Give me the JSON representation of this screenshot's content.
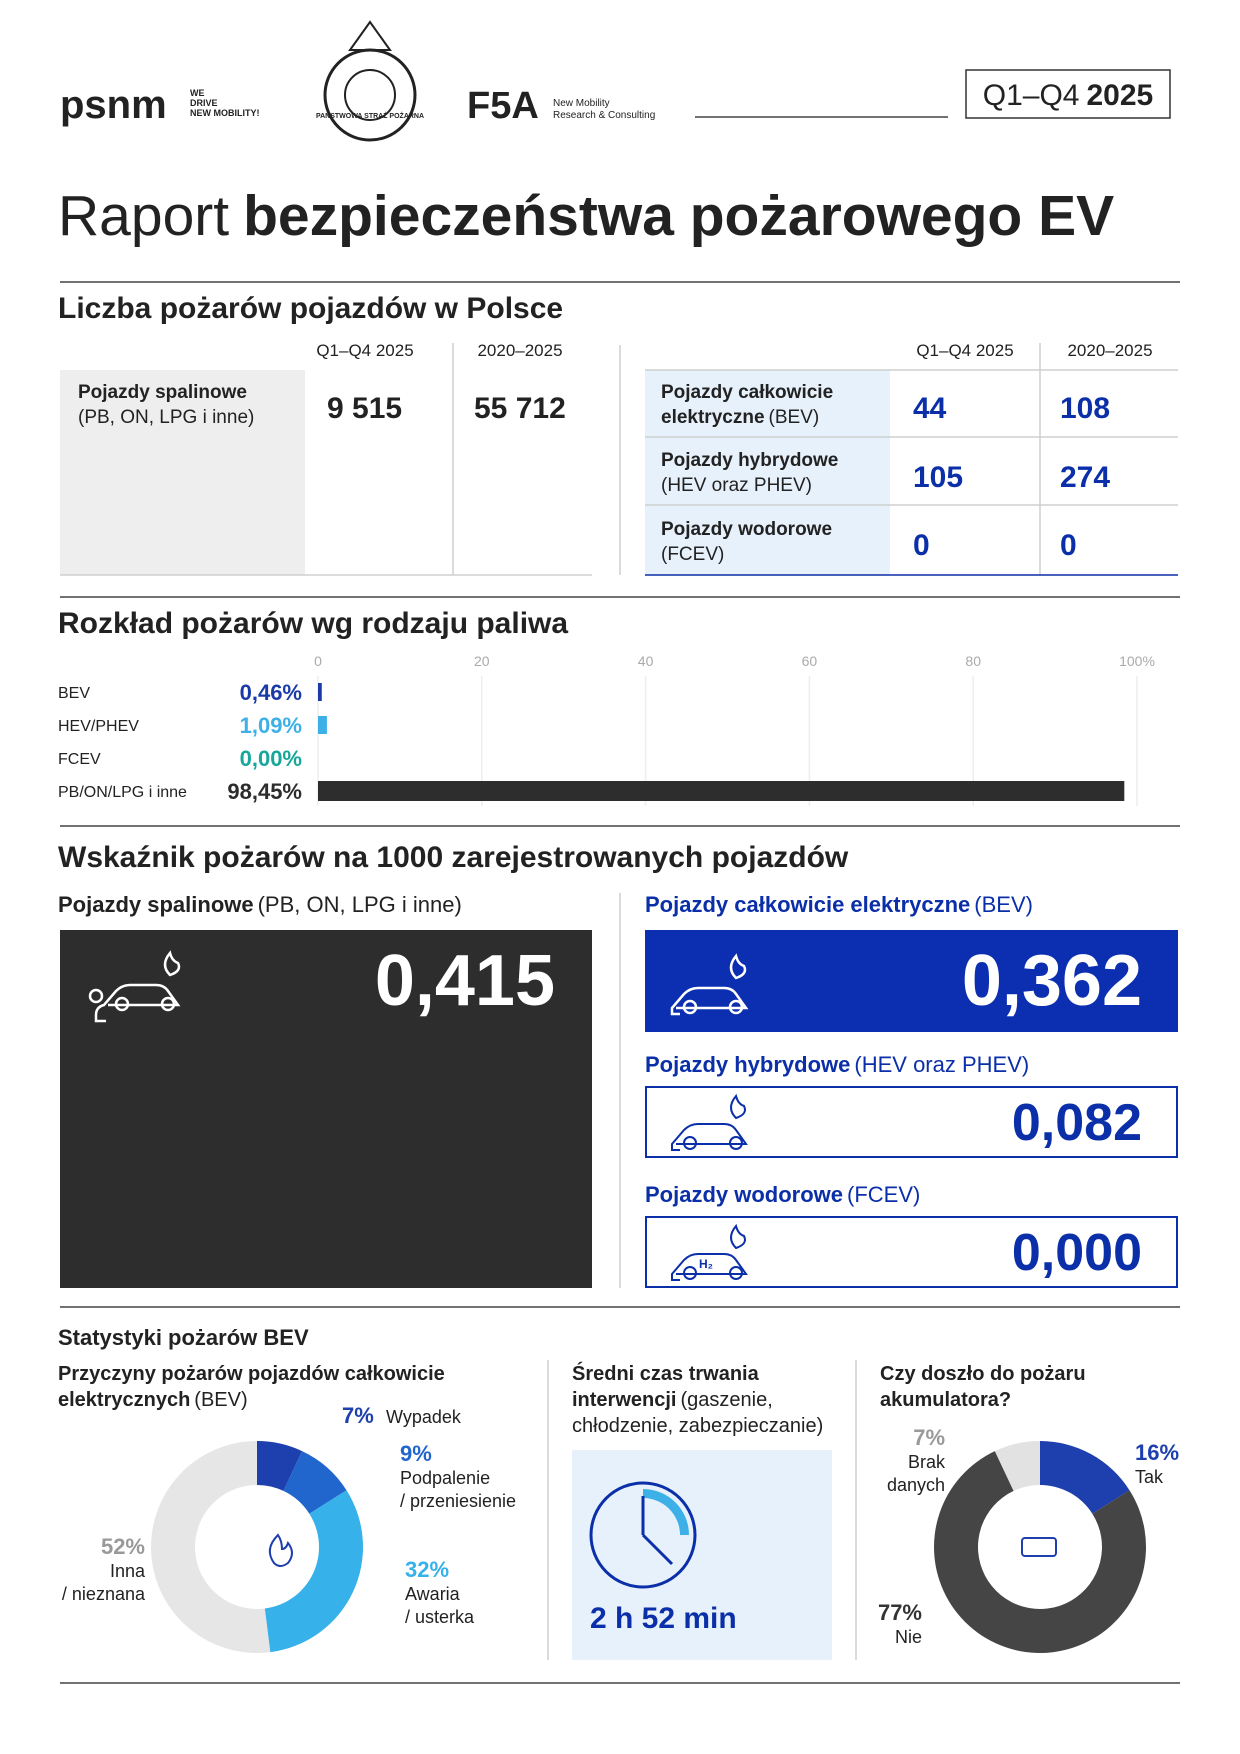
{
  "header": {
    "psnm": "psnm",
    "psnm_tagline": [
      "WE",
      "DRIVE",
      "NEW MOBILITY!"
    ],
    "emblem": "PAŃSTWOWA STRAŻ POŻARNA",
    "f5a": "F5A",
    "f5a_tagline": [
      "New Mobility",
      "Research & Consulting"
    ],
    "period": {
      "light": "Q1–Q4",
      "bold": "2025"
    }
  },
  "title": {
    "light": "Raport",
    "bold": "bezpieczeństwa pożarowego EV"
  },
  "fires_count": {
    "heading": "Liczba pożarów pojazdów w Polsce",
    "columns": [
      "Q1–Q4 2025",
      "2020–2025"
    ],
    "combustion": {
      "label": "Pojazdy spalinowe",
      "sub": "(PB, ON, LPG i inne)",
      "values": [
        "9 515",
        "55 712"
      ]
    },
    "ev_columns": [
      "Q1–Q4 2025",
      "2020–2025"
    ],
    "ev_rows": [
      {
        "bold": [
          "Pojazdy całkowicie",
          "elektryczne"
        ],
        "regular": "(BEV)",
        "values": [
          "44",
          "108"
        ]
      },
      {
        "bold": [
          "Pojazdy hybrydowe"
        ],
        "regular": "(HEV oraz PHEV)",
        "values": [
          "105",
          "274"
        ]
      },
      {
        "bold": [
          "Pojazdy wodorowe"
        ],
        "regular": "(FCEV)",
        "values": [
          "0",
          "0"
        ]
      }
    ]
  },
  "rates": {
    "heading": "Wskaźnik pożarów na 1000 zarejestrowanych pojazdów",
    "combustion": {
      "bold": "Pojazdy spalinowe",
      "regular": "(PB, ON, LPG i inne)",
      "value": "0,415"
    },
    "bev": {
      "bold": "Pojazdy całkowicie elektryczne",
      "regular": "(BEV)",
      "value": "0,362"
    },
    "hybrid": {
      "bold": "Pojazdy hybrydowe",
      "regular": "(HEV oraz PHEV)",
      "value": "0,082"
    },
    "hydrogen": {
      "bold": "Pojazdy wodorowe",
      "regular": "(FCEV)",
      "value": "0,000",
      "icon": "H₂"
    }
  },
  "bev_stats": {
    "heading": "Statystyki pożarów BEV",
    "causes_title": {
      "bold": [
        "Przyczyny pożarów pojazdów całkowicie",
        "elektrycznych"
      ],
      "regular": "(BEV)"
    },
    "duration": {
      "bold": [
        "Średni czas trwania",
        "interwencji"
      ],
      "regular": [
        "(gaszenie,",
        "chłodzenie, zabezpieczanie)"
      ],
      "value": "2 h 52 min"
    },
    "battery_title": [
      "Czy doszło do pożaru",
      "akumulatora?"
    ]
  },
  "chart_data": [
    {
      "type": "bar",
      "title": "Rozkład pożarów wg rodzaju paliwa",
      "categories": [
        "BEV",
        "HEV/PHEV",
        "FCEV",
        "PB/ON/LPG i inne"
      ],
      "values": [
        0.46,
        1.09,
        0,
        98.45
      ],
      "value_labels": [
        "0,46%",
        "1,09%",
        "0,00%",
        "98,45%"
      ],
      "colors": [
        "#1a3aa8",
        "#3db0e8",
        "#17a79a",
        "#2d2d2d"
      ],
      "xlim": [
        0,
        100
      ],
      "xticks": [
        0,
        20,
        40,
        60,
        80,
        {
          "value": 100,
          "label": "100%"
        }
      ],
      "grid": true
    },
    {
      "type": "pie",
      "categories": [
        [
          "Wypadek"
        ],
        [
          "Podpalenie",
          "/ przeniesienie"
        ],
        [
          "Awaria",
          "/ usterka"
        ],
        [
          "Inna",
          "/ nieznana"
        ]
      ],
      "values": [
        7,
        9,
        32,
        52
      ],
      "value_labels": [
        "7%",
        "9%",
        "32%",
        "52%"
      ],
      "colors": [
        "#1e3fae",
        "#2166cc",
        "#36b1ea",
        "#e6e6e6"
      ]
    },
    {
      "type": "pie",
      "categories": [
        [
          "Tak"
        ],
        [
          "Nie"
        ],
        [
          "Brak",
          "danych"
        ]
      ],
      "values": [
        16,
        77,
        7
      ],
      "value_labels": [
        "16%",
        "77%",
        "7%"
      ],
      "colors": [
        "#1e3fae",
        "#454545",
        "#e2e2e2"
      ]
    }
  ]
}
